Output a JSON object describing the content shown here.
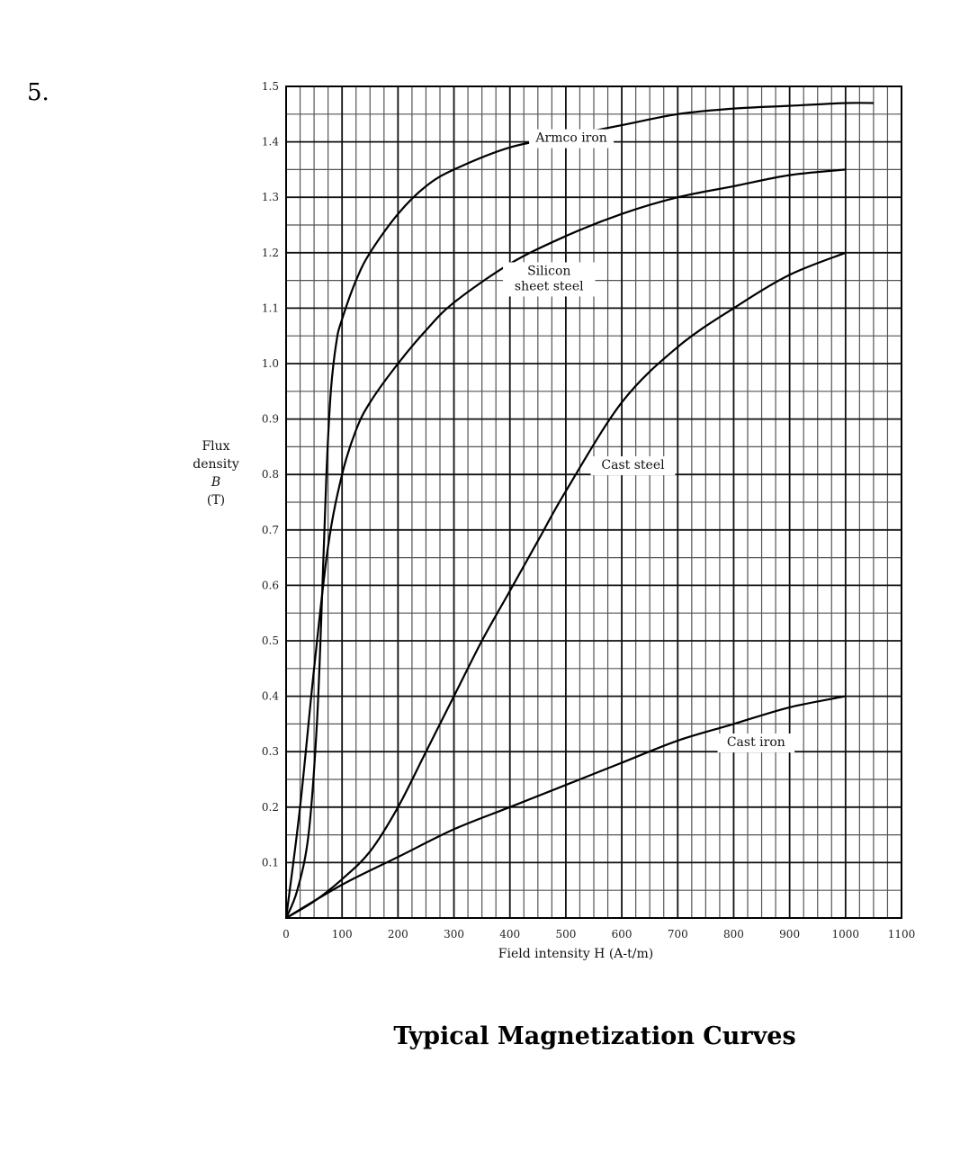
{
  "question": {
    "number": "5."
  },
  "caption": "Typical Magnetization Curves",
  "chart_data": {
    "type": "line",
    "title": "",
    "xlabel": "Field intensity H (A-t/m)",
    "ylabel_lines": [
      "Flux",
      "density",
      "B",
      "(T)"
    ],
    "xlim": [
      0,
      1100
    ],
    "ylim": [
      0,
      1.5
    ],
    "grid": true,
    "x_ticks": [
      0,
      100,
      200,
      300,
      400,
      500,
      600,
      700,
      800,
      900,
      1000,
      1100
    ],
    "x_tick_labels": [
      "0",
      "100",
      "200",
      "300",
      "400",
      "500",
      "600",
      "700",
      "800",
      "900",
      "1000",
      "1100"
    ],
    "y_ticks": [
      0.1,
      0.2,
      0.3,
      0.4,
      0.5,
      0.6,
      0.7,
      0.8,
      0.9,
      1.0,
      1.1,
      1.2,
      1.3,
      1.4,
      1.5
    ],
    "y_tick_labels": [
      "0.1",
      "0.2",
      "0.3",
      "0.4",
      "0.5",
      "0.6",
      "0.7",
      "0.8",
      "0.9",
      "1.0",
      "1.1",
      "1.2",
      "1.3",
      "1.4",
      "1.5"
    ],
    "series": [
      {
        "name": "Armco iron",
        "x": [
          0,
          20,
          40,
          55,
          65,
          72,
          80,
          90,
          100,
          125,
          150,
          200,
          250,
          300,
          400,
          500,
          600,
          700,
          800,
          900,
          1000,
          1050
        ],
        "y": [
          0,
          0.05,
          0.15,
          0.35,
          0.6,
          0.8,
          0.95,
          1.04,
          1.08,
          1.15,
          1.2,
          1.27,
          1.32,
          1.35,
          1.39,
          1.41,
          1.43,
          1.45,
          1.46,
          1.465,
          1.47,
          1.47
        ]
      },
      {
        "name": "Silicon sheet steel",
        "x": [
          0,
          25,
          50,
          75,
          100,
          125,
          150,
          200,
          250,
          300,
          400,
          500,
          600,
          700,
          800,
          900,
          1000
        ],
        "y": [
          0,
          0.2,
          0.45,
          0.67,
          0.8,
          0.88,
          0.93,
          1.0,
          1.06,
          1.11,
          1.18,
          1.23,
          1.27,
          1.3,
          1.32,
          1.34,
          1.35
        ]
      },
      {
        "name": "Cast steel",
        "x": [
          0,
          50,
          100,
          150,
          200,
          250,
          300,
          350,
          400,
          450,
          500,
          600,
          700,
          800,
          900,
          1000
        ],
        "y": [
          0,
          0.03,
          0.07,
          0.12,
          0.2,
          0.3,
          0.4,
          0.5,
          0.59,
          0.68,
          0.77,
          0.93,
          1.03,
          1.1,
          1.16,
          1.2
        ]
      },
      {
        "name": "Cast iron",
        "x": [
          0,
          100,
          200,
          300,
          400,
          500,
          600,
          700,
          800,
          900,
          1000
        ],
        "y": [
          0,
          0.06,
          0.11,
          0.16,
          0.2,
          0.24,
          0.28,
          0.32,
          0.35,
          0.38,
          0.4
        ]
      }
    ],
    "curve_labels": [
      {
        "series": "Armco iron",
        "lines": [
          "Armco iron"
        ],
        "x": 510,
        "y": 1.4
      },
      {
        "series": "Silicon sheet steel",
        "lines": [
          "Silicon",
          "sheet steel"
        ],
        "x": 470,
        "y": 1.16
      },
      {
        "series": "Cast steel",
        "lines": [
          "Cast steel"
        ],
        "x": 620,
        "y": 0.81
      },
      {
        "series": "Cast iron",
        "lines": [
          "Cast iron"
        ],
        "x": 840,
        "y": 0.31
      }
    ]
  }
}
